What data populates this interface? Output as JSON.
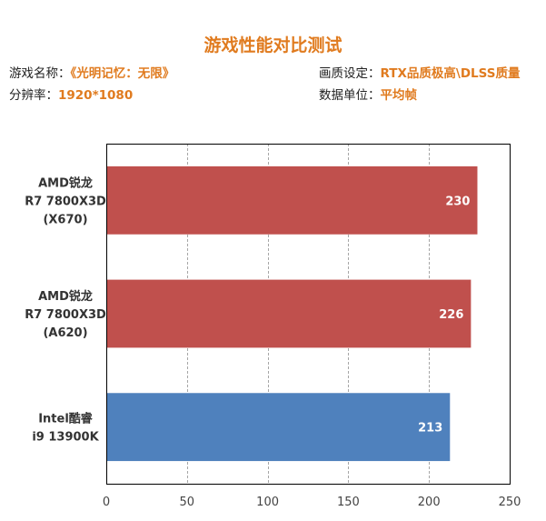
{
  "header": {
    "title": "游戏性能对比测试",
    "game_label": "游戏名称：",
    "game_value": "《光明记忆：无限》",
    "resolution_label": "分辨率：",
    "resolution_value": "1920*1080",
    "quality_label": "画质设定：",
    "quality_value": "RTX品质极高\\DLSS质量",
    "unit_label": "数据单位：",
    "unit_value": "平均帧"
  },
  "colors": {
    "accent": "#e07b1f",
    "amd_bar": "#c0504d",
    "intel_bar": "#4f81bd",
    "grid": "#a6a6a6",
    "frame": "#000000"
  },
  "chart_data": {
    "type": "bar",
    "orientation": "horizontal",
    "title": "游戏性能对比测试",
    "xlabel": "",
    "ylabel": "",
    "xlim": [
      0,
      250
    ],
    "xticks": [
      0,
      50,
      100,
      150,
      200,
      250
    ],
    "grid": "vertical-dashed",
    "legend": "none",
    "categories": [
      [
        "AMD锐龙",
        "R7 7800X3D",
        "(X670)"
      ],
      [
        "AMD锐龙",
        "R7 7800X3D",
        "(A620)"
      ],
      [
        "Intel酷睿",
        "i9 13900K"
      ]
    ],
    "values": [
      230,
      226,
      213
    ],
    "bar_colors": [
      "#c0504d",
      "#c0504d",
      "#4f81bd"
    ]
  }
}
